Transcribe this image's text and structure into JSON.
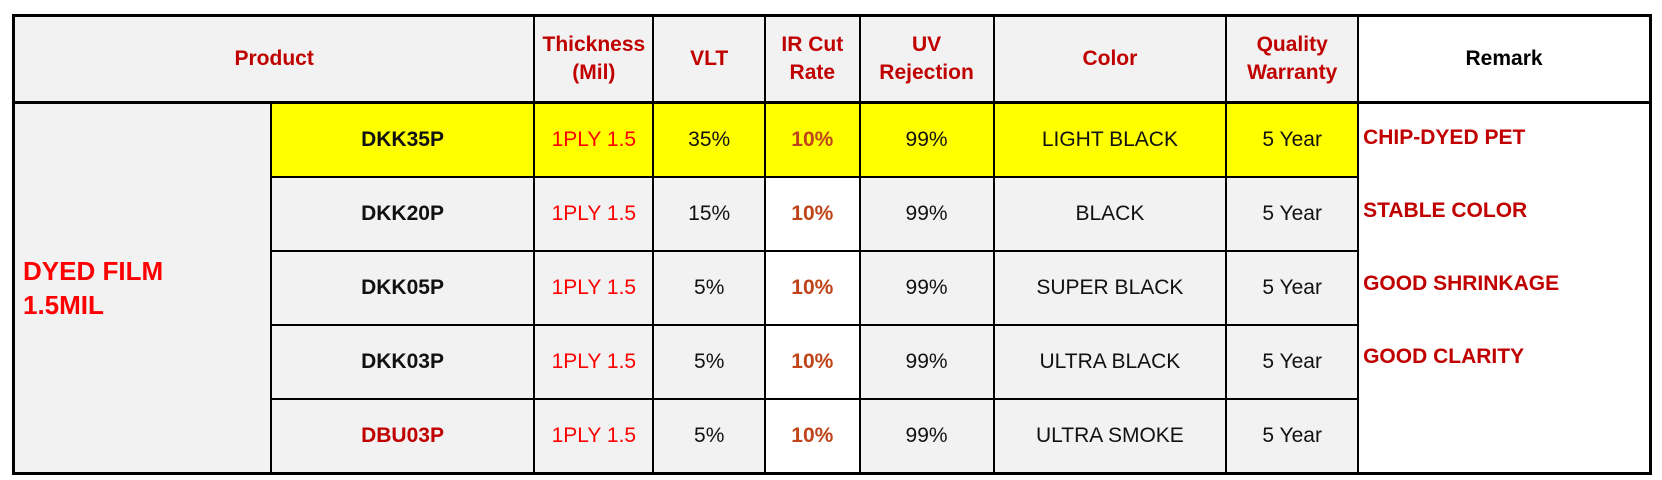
{
  "header": {
    "product": "Product",
    "thickness": "Thickness\n(Mil)",
    "vlt": "VLT",
    "ir": "IR Cut\nRate",
    "uv": "UV\nRejection",
    "color": "Color",
    "warranty": "Quality\nWarranty",
    "remark": "Remark"
  },
  "group_label": "DYED FILM\n1.5MIL",
  "rows": [
    {
      "product": "DKK35P",
      "thickness": "1PLY 1.5",
      "vlt": "35%",
      "ir": "10%",
      "uv": "99%",
      "color": "LIGHT BLACK",
      "warranty": "5 Year"
    },
    {
      "product": "DKK20P",
      "thickness": "1PLY 1.5",
      "vlt": "15%",
      "ir": "10%",
      "uv": "99%",
      "color": "BLACK",
      "warranty": "5 Year"
    },
    {
      "product": "DKK05P",
      "thickness": "1PLY 1.5",
      "vlt": "5%",
      "ir": "10%",
      "uv": "99%",
      "color": "SUPER BLACK",
      "warranty": "5 Year"
    },
    {
      "product": "DKK03P",
      "thickness": "1PLY 1.5",
      "vlt": "5%",
      "ir": "10%",
      "uv": "99%",
      "color": "ULTRA BLACK",
      "warranty": "5 Year"
    },
    {
      "product": "DBU03P",
      "thickness": "1PLY 1.5",
      "vlt": "5%",
      "ir": "10%",
      "uv": "99%",
      "color": "ULTRA SMOKE",
      "warranty": "5 Year"
    }
  ],
  "remarks": [
    "CHIP-DYED PET",
    "STABLE COLOR",
    "GOOD SHRINKAGE",
    "GOOD CLARITY"
  ],
  "colors": {
    "header_red": "#c00000",
    "highlight": "#ffff00",
    "cell_bg": "#f2f2f2"
  }
}
